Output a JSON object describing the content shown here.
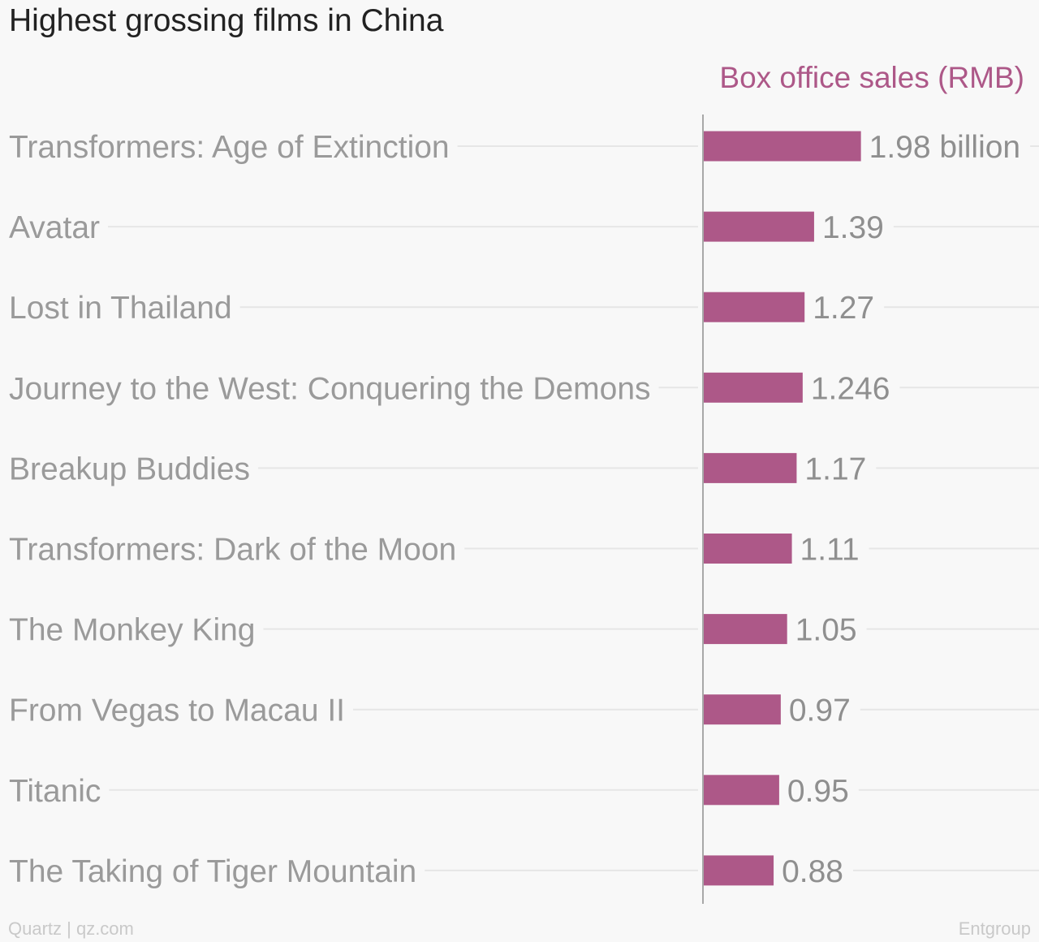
{
  "colors": {
    "bar": "#ad5888",
    "series_label": "#ad5888",
    "category_label": "#9a9a9a",
    "value_label": "#8f8f8f",
    "grid": "#e6e6e6",
    "axis": "#a8a8a8",
    "title": "#222222",
    "footer": "#c9c9c9",
    "background": "#f8f8f8"
  },
  "footer": {
    "source_credit": "Quartz | qz.com",
    "data_source": "Entgroup"
  },
  "chart_data": {
    "type": "bar",
    "orientation": "horizontal",
    "title": "Highest grossing films in China",
    "categories": [
      "Transformers: Age of Extinction",
      "Avatar",
      "Lost in Thailand",
      "Journey to the West: Conquering the Demons",
      "Breakup Buddies",
      "Transformers: Dark of the Moon",
      "The Monkey King",
      "From Vegas to Macau II",
      "Titanic",
      "The Taking of Tiger Mountain"
    ],
    "series": [
      {
        "name": "Box office sales (RMB)",
        "values": [
          1.98,
          1.39,
          1.27,
          1.246,
          1.17,
          1.11,
          1.05,
          0.97,
          0.95,
          0.88
        ]
      }
    ],
    "value_labels": [
      "1.98 billion",
      "1.39",
      "1.27",
      "1.246",
      "1.17",
      "1.11",
      "1.05",
      "0.97",
      "0.95",
      "0.88"
    ],
    "xlim": [
      0,
      2
    ],
    "grid": true,
    "legend": "top-right"
  }
}
